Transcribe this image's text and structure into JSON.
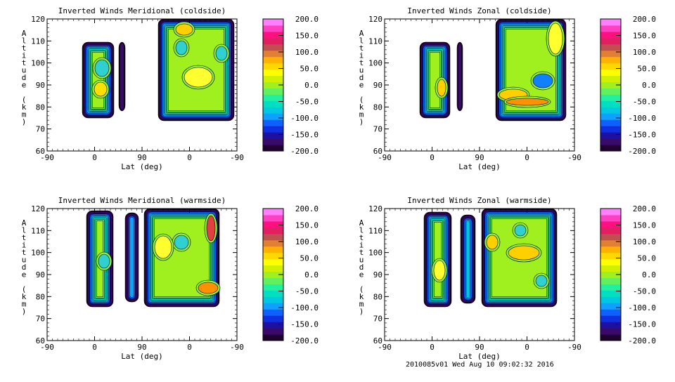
{
  "footer": "2010085v01 Wed Aug 10 09:02:32 2016",
  "chart_data": [
    {
      "type": "heatmap",
      "title": "Inverted Winds Meridional (coldside)",
      "xlabel": "Lat (deg)",
      "ylabel": "Altitude (km)",
      "xticks": [
        "-90",
        "0",
        "90",
        "0",
        "-90"
      ],
      "yticks": [
        "60",
        "70",
        "80",
        "90",
        "100",
        "110",
        "120"
      ],
      "ylim": [
        60,
        120
      ],
      "colorbar": {
        "range": [
          -200,
          200
        ],
        "labels": [
          "200.0",
          "150.0",
          "100.0",
          "50.0",
          "0.0",
          "-50.0",
          "-100.0",
          "-150.0",
          "-200.0"
        ]
      }
    },
    {
      "type": "heatmap",
      "title": "Inverted Winds Zonal (coldside)",
      "xlabel": "Lat (deg)",
      "ylabel": "Altitude (km)",
      "xticks": [
        "-90",
        "0",
        "90",
        "0",
        "-90"
      ],
      "yticks": [
        "60",
        "70",
        "80",
        "90",
        "100",
        "110",
        "120"
      ],
      "ylim": [
        60,
        120
      ],
      "colorbar": {
        "range": [
          -200,
          200
        ],
        "labels": [
          "200.0",
          "150.0",
          "100.0",
          "50.0",
          "0.0",
          "-50.0",
          "-100.0",
          "-150.0",
          "-200.0"
        ]
      }
    },
    {
      "type": "heatmap",
      "title": "Inverted Winds Meridional (warmside)",
      "xlabel": "Lat (deg)",
      "ylabel": "Altitude (km)",
      "xticks": [
        "-90",
        "0",
        "90",
        "0",
        "-90"
      ],
      "yticks": [
        "60",
        "70",
        "80",
        "90",
        "100",
        "110",
        "120"
      ],
      "ylim": [
        60,
        120
      ],
      "colorbar": {
        "range": [
          -200,
          200
        ],
        "labels": [
          "200.0",
          "150.0",
          "100.0",
          "50.0",
          "0.0",
          "-50.0",
          "-100.0",
          "-150.0",
          "-200.0"
        ]
      }
    },
    {
      "type": "heatmap",
      "title": "Inverted Winds Zonal (warmside)",
      "xlabel": "Lat (deg)",
      "ylabel": "Altitude (km)",
      "xticks": [
        "-90",
        "0",
        "90",
        "0",
        "-90"
      ],
      "yticks": [
        "60",
        "70",
        "80",
        "90",
        "100",
        "110",
        "120"
      ],
      "ylim": [
        60,
        120
      ],
      "colorbar": {
        "range": [
          -200,
          200
        ],
        "labels": [
          "200.0",
          "150.0",
          "100.0",
          "50.0",
          "0.0",
          "-50.0",
          "-100.0",
          "-150.0",
          "-200.0"
        ]
      }
    }
  ],
  "colorscale": [
    "#200030",
    "#3a0a6a",
    "#2010a0",
    "#1030e0",
    "#1060ff",
    "#10a0ff",
    "#00c8e0",
    "#00e0c0",
    "#20f0a0",
    "#60f060",
    "#a0f020",
    "#d0f000",
    "#ffff00",
    "#ffd800",
    "#ffb000",
    "#e08030",
    "#c05050",
    "#e02060",
    "#ff1080",
    "#ff40c0",
    "#ff80ff"
  ]
}
